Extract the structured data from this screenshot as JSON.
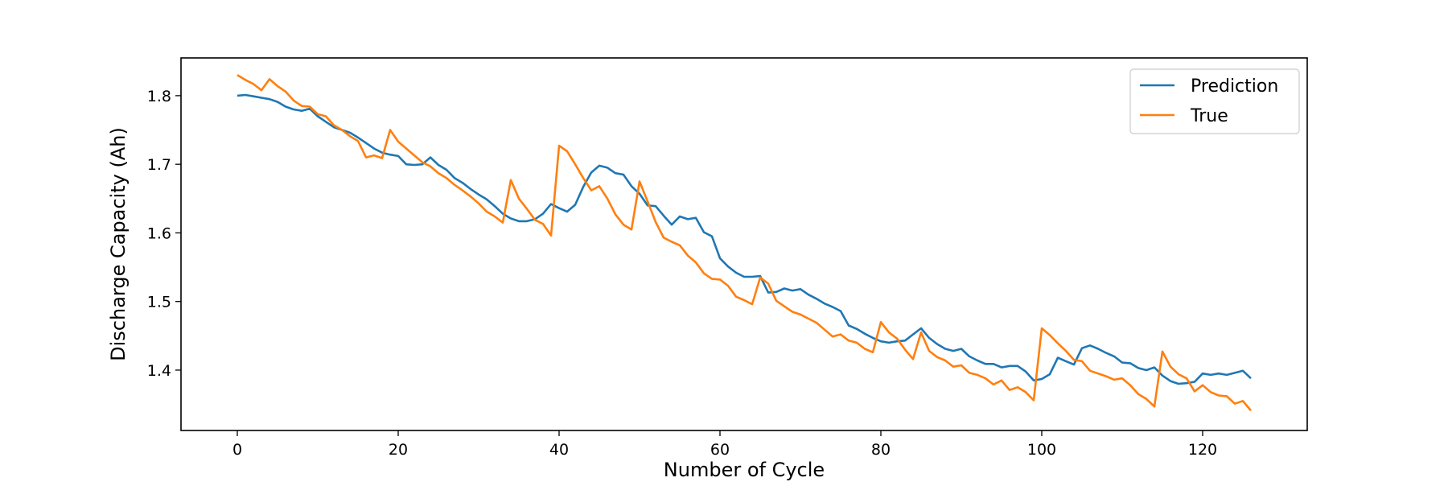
{
  "chart_data": {
    "type": "line",
    "title": "",
    "xlabel": "Number of Cycle",
    "ylabel": "Discharge Capacity (Ah)",
    "xlim": [
      -7,
      133
    ],
    "ylim": [
      1.312,
      1.855
    ],
    "xticks": [
      0,
      20,
      40,
      60,
      80,
      100,
      120
    ],
    "xtick_labels": [
      "0",
      "20",
      "40",
      "60",
      "80",
      "100",
      "120"
    ],
    "yticks": [
      1.4,
      1.5,
      1.6,
      1.7,
      1.8
    ],
    "ytick_labels": [
      "1.4",
      "1.5",
      "1.6",
      "1.7",
      "1.8"
    ],
    "grid": false,
    "legend_position": "upper right",
    "series": [
      {
        "name": "Prediction",
        "color": "#1f77b4",
        "x": [
          0,
          1,
          2,
          3,
          4,
          5,
          6,
          7,
          8,
          9,
          10,
          11,
          12,
          13,
          14,
          15,
          16,
          17,
          18,
          19,
          20,
          21,
          22,
          23,
          24,
          25,
          26,
          27,
          28,
          29,
          30,
          31,
          32,
          33,
          34,
          35,
          36,
          37,
          38,
          39,
          40,
          41,
          42,
          43,
          44,
          45,
          46,
          47,
          48,
          49,
          50,
          51,
          52,
          53,
          54,
          55,
          56,
          57,
          58,
          59,
          60,
          61,
          62,
          63,
          64,
          65,
          66,
          67,
          68,
          69,
          70,
          71,
          72,
          73,
          74,
          75,
          76,
          77,
          78,
          79,
          80,
          81,
          82,
          83,
          84,
          85,
          86,
          87,
          88,
          89,
          90,
          91,
          92,
          93,
          94,
          95,
          96,
          97,
          98,
          99,
          100,
          101,
          102,
          103,
          104,
          105,
          106,
          107,
          108,
          109,
          110,
          111,
          112,
          113,
          114,
          115,
          116,
          117,
          118,
          119,
          120,
          121,
          122,
          123,
          124,
          125,
          126
        ],
        "values": [
          1.8,
          1.801,
          1.799,
          1.797,
          1.795,
          1.791,
          1.784,
          1.78,
          1.778,
          1.781,
          1.77,
          1.762,
          1.754,
          1.75,
          1.746,
          1.739,
          1.731,
          1.723,
          1.717,
          1.714,
          1.712,
          1.7,
          1.699,
          1.7,
          1.71,
          1.699,
          1.692,
          1.68,
          1.673,
          1.664,
          1.656,
          1.649,
          1.639,
          1.628,
          1.621,
          1.617,
          1.617,
          1.62,
          1.628,
          1.642,
          1.636,
          1.631,
          1.641,
          1.667,
          1.688,
          1.698,
          1.695,
          1.687,
          1.685,
          1.668,
          1.657,
          1.64,
          1.639,
          1.625,
          1.612,
          1.624,
          1.62,
          1.622,
          1.601,
          1.595,
          1.563,
          1.551,
          1.542,
          1.536,
          1.536,
          1.537,
          1.513,
          1.514,
          1.519,
          1.516,
          1.518,
          1.51,
          1.504,
          1.497,
          1.492,
          1.486,
          1.465,
          1.46,
          1.453,
          1.447,
          1.442,
          1.44,
          1.442,
          1.443,
          1.452,
          1.461,
          1.447,
          1.438,
          1.431,
          1.428,
          1.431,
          1.42,
          1.414,
          1.409,
          1.409,
          1.404,
          1.406,
          1.406,
          1.398,
          1.385,
          1.387,
          1.394,
          1.418,
          1.413,
          1.408,
          1.432,
          1.436,
          1.431,
          1.425,
          1.42,
          1.411,
          1.41,
          1.403,
          1.4,
          1.404,
          1.392,
          1.384,
          1.38,
          1.381,
          1.383,
          1.395,
          1.393,
          1.395,
          1.393,
          1.396,
          1.399,
          1.388
        ]
      },
      {
        "name": "True",
        "color": "#ff7f0e",
        "x": [
          0,
          1,
          2,
          3,
          4,
          5,
          6,
          7,
          8,
          9,
          10,
          11,
          12,
          13,
          14,
          15,
          16,
          17,
          18,
          19,
          20,
          21,
          22,
          23,
          24,
          25,
          26,
          27,
          28,
          29,
          30,
          31,
          32,
          33,
          34,
          35,
          36,
          37,
          38,
          39,
          40,
          41,
          42,
          43,
          44,
          45,
          46,
          47,
          48,
          49,
          50,
          51,
          52,
          53,
          54,
          55,
          56,
          57,
          58,
          59,
          60,
          61,
          62,
          63,
          64,
          65,
          66,
          67,
          68,
          69,
          70,
          71,
          72,
          73,
          74,
          75,
          76,
          77,
          78,
          79,
          80,
          81,
          82,
          83,
          84,
          85,
          86,
          87,
          88,
          89,
          90,
          91,
          92,
          93,
          94,
          95,
          96,
          97,
          98,
          99,
          100,
          101,
          102,
          103,
          104,
          105,
          106,
          107,
          108,
          109,
          110,
          111,
          112,
          113,
          114,
          115,
          116,
          117,
          118,
          119,
          120,
          121,
          122,
          123,
          124,
          125,
          126
        ],
        "values": [
          1.83,
          1.823,
          1.817,
          1.808,
          1.824,
          1.814,
          1.806,
          1.793,
          1.785,
          1.784,
          1.773,
          1.77,
          1.757,
          1.75,
          1.741,
          1.734,
          1.71,
          1.713,
          1.709,
          1.75,
          1.733,
          1.723,
          1.713,
          1.703,
          1.697,
          1.687,
          1.68,
          1.67,
          1.662,
          1.653,
          1.643,
          1.631,
          1.624,
          1.615,
          1.677,
          1.65,
          1.635,
          1.619,
          1.613,
          1.596,
          1.727,
          1.719,
          1.7,
          1.68,
          1.662,
          1.668,
          1.65,
          1.627,
          1.612,
          1.605,
          1.675,
          1.646,
          1.616,
          1.593,
          1.587,
          1.582,
          1.567,
          1.557,
          1.541,
          1.533,
          1.532,
          1.523,
          1.507,
          1.502,
          1.496,
          1.535,
          1.526,
          1.501,
          1.493,
          1.485,
          1.481,
          1.475,
          1.469,
          1.459,
          1.449,
          1.452,
          1.443,
          1.44,
          1.431,
          1.426,
          1.47,
          1.455,
          1.446,
          1.43,
          1.416,
          1.455,
          1.428,
          1.419,
          1.414,
          1.405,
          1.407,
          1.396,
          1.393,
          1.388,
          1.379,
          1.385,
          1.371,
          1.375,
          1.368,
          1.356,
          1.461,
          1.451,
          1.439,
          1.428,
          1.415,
          1.413,
          1.399,
          1.395,
          1.391,
          1.386,
          1.388,
          1.378,
          1.365,
          1.358,
          1.347,
          1.427,
          1.405,
          1.394,
          1.388,
          1.369,
          1.378,
          1.368,
          1.363,
          1.362,
          1.351,
          1.355,
          1.341
        ]
      }
    ]
  }
}
